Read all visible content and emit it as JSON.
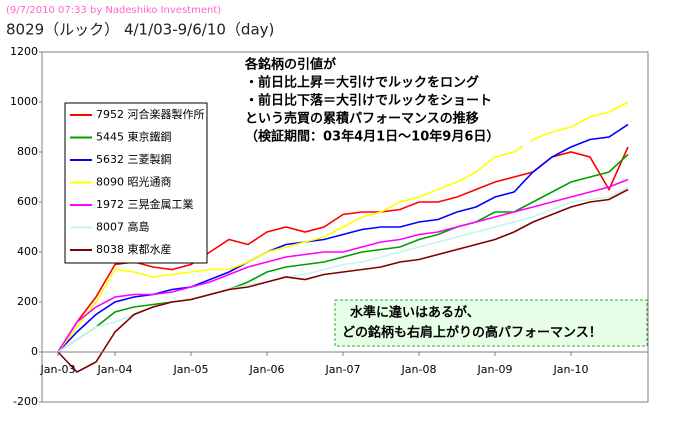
{
  "chart_data": {
    "type": "line",
    "header": "(9/7/2010 07:33 by Nadeshiko Investment)",
    "title": "8029（ルック） 4/1/03-9/6/10（day)",
    "annotation": [
      "各銘柄の引値が",
      "・前日比上昇＝大引けでルックをロング",
      "・前日比下落＝大引けでルックをショート",
      "という売買の累積パフォーマンスの推移",
      "（検証期間：03年4月1日～10年9月6日）"
    ],
    "callout": [
      "水準に違いはあるが、",
      "どの銘柄も右肩上がりの高パフォーマンス！"
    ],
    "categories": [
      "Jan-03",
      null,
      null,
      "Jan-04",
      null,
      null,
      null,
      "Jan-05",
      null,
      null,
      null,
      "Jan-06",
      null,
      null,
      null,
      "Jan-07",
      null,
      null,
      null,
      "Jan-08",
      null,
      null,
      null,
      "Jan-09",
      null,
      null,
      null,
      "Jan-10",
      null,
      null,
      null
    ],
    "ylim": [
      -200,
      1200
    ],
    "yticks": [
      -200,
      0,
      200,
      400,
      600,
      800,
      1000,
      1200
    ],
    "grid": false,
    "legend": "upper left",
    "series": [
      {
        "name": "7952 河合楽器製作所",
        "color": "#ff0000",
        "values": [
          0,
          120,
          220,
          350,
          360,
          340,
          330,
          350,
          400,
          450,
          430,
          480,
          500,
          480,
          500,
          550,
          560,
          560,
          570,
          600,
          600,
          620,
          650,
          680,
          700,
          720,
          780,
          800,
          780,
          650,
          820
        ]
      },
      {
        "name": "5445 東京鐵鋼",
        "color": "#00a000",
        "values": [
          0,
          50,
          100,
          160,
          180,
          190,
          200,
          210,
          230,
          250,
          280,
          320,
          340,
          350,
          360,
          380,
          400,
          410,
          420,
          450,
          470,
          500,
          520,
          560,
          560,
          600,
          640,
          680,
          700,
          720,
          790
        ]
      },
      {
        "name": "5632 三菱製鋼",
        "color": "#0000ff",
        "values": [
          0,
          80,
          150,
          200,
          220,
          230,
          250,
          260,
          290,
          320,
          360,
          400,
          430,
          440,
          450,
          470,
          490,
          500,
          500,
          520,
          530,
          560,
          580,
          620,
          640,
          720,
          780,
          820,
          850,
          860,
          910
        ]
      },
      {
        "name": "8090 昭光通商",
        "color": "#ffff00",
        "values": [
          0,
          100,
          200,
          330,
          320,
          300,
          310,
          320,
          330,
          330,
          360,
          400,
          420,
          440,
          460,
          500,
          540,
          560,
          600,
          620,
          650,
          680,
          720,
          780,
          800,
          850,
          880,
          900,
          940,
          960,
          1000
        ]
      },
      {
        "name": "1972 三晃金属工業",
        "color": "#ff00ff",
        "values": [
          0,
          120,
          180,
          220,
          230,
          230,
          240,
          260,
          280,
          310,
          340,
          360,
          380,
          390,
          400,
          400,
          420,
          440,
          450,
          470,
          480,
          500,
          520,
          540,
          560,
          580,
          600,
          620,
          640,
          660,
          690
        ]
      },
      {
        "name": "8007 高島",
        "color": "#c4f4f4",
        "values": [
          0,
          50,
          100,
          120,
          150,
          180,
          200,
          210,
          230,
          250,
          270,
          280,
          300,
          310,
          330,
          350,
          360,
          380,
          400,
          420,
          440,
          460,
          480,
          500,
          520,
          540,
          570,
          600,
          610,
          620,
          660
        ]
      },
      {
        "name": "8038 東都水産",
        "color": "#800000",
        "values": [
          0,
          -80,
          -40,
          80,
          150,
          180,
          200,
          210,
          230,
          250,
          260,
          280,
          300,
          290,
          310,
          320,
          330,
          340,
          360,
          370,
          390,
          410,
          430,
          450,
          480,
          520,
          550,
          580,
          600,
          610,
          650
        ]
      }
    ]
  }
}
